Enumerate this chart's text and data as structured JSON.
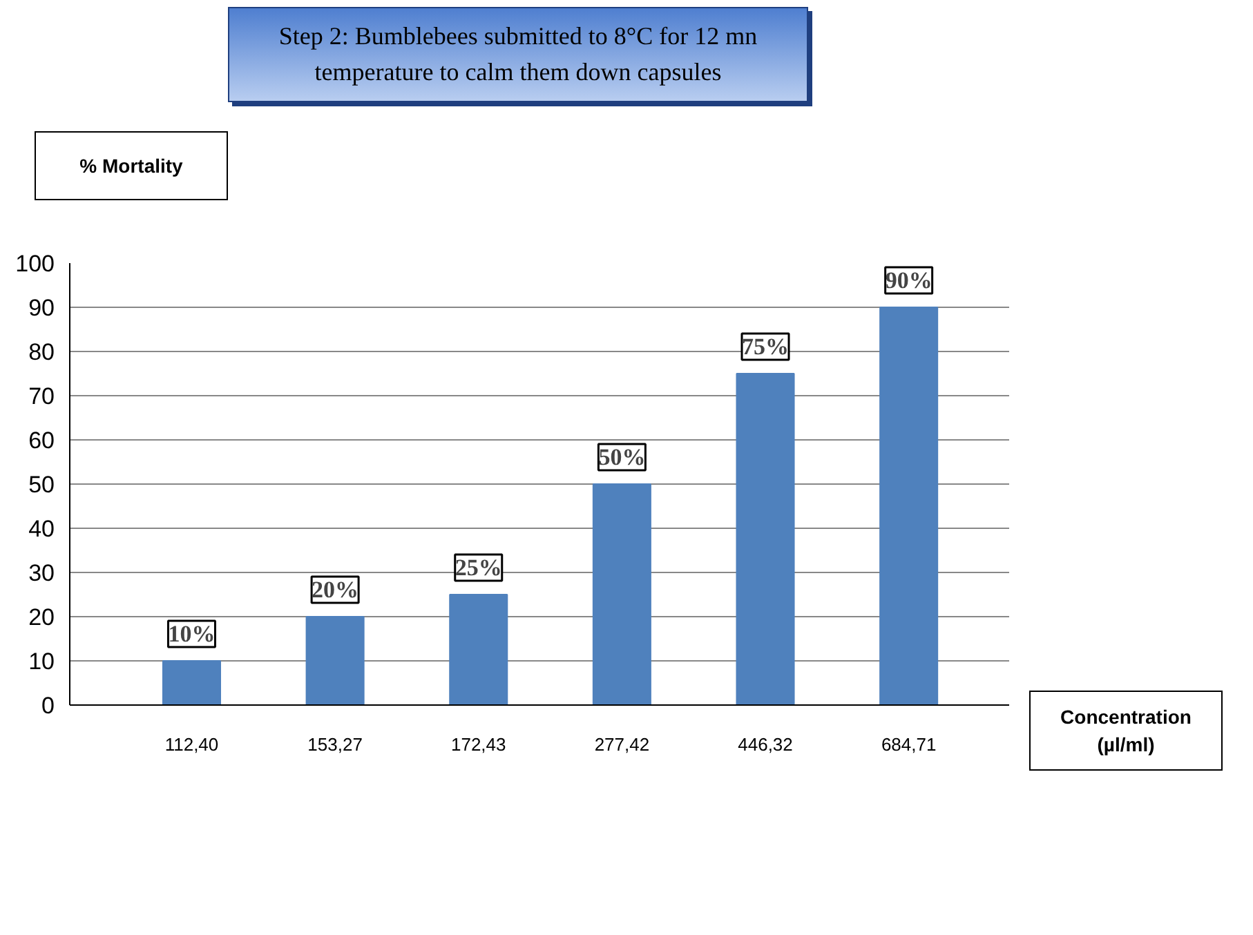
{
  "chart_data": {
    "type": "bar",
    "title": "Step 2: Bumblebees submitted to 8°C for 12 mn temperature to calm them down capsules",
    "ylabel": "% Mortality",
    "xlabel": "Concentration (µl/ml)",
    "categories": [
      "112,40",
      "153,27",
      "172,43",
      "277,42",
      "446,32",
      "684,71"
    ],
    "values": [
      10,
      20,
      25,
      50,
      75,
      90
    ],
    "value_labels": [
      "10%",
      "20%",
      "25%",
      "50%",
      "75%",
      "90%"
    ],
    "color": "#4f81bd",
    "ylim": [
      0,
      100
    ],
    "yticks": [
      0,
      10,
      20,
      30,
      40,
      50,
      60,
      70,
      80,
      90,
      100
    ],
    "grid": "y"
  }
}
